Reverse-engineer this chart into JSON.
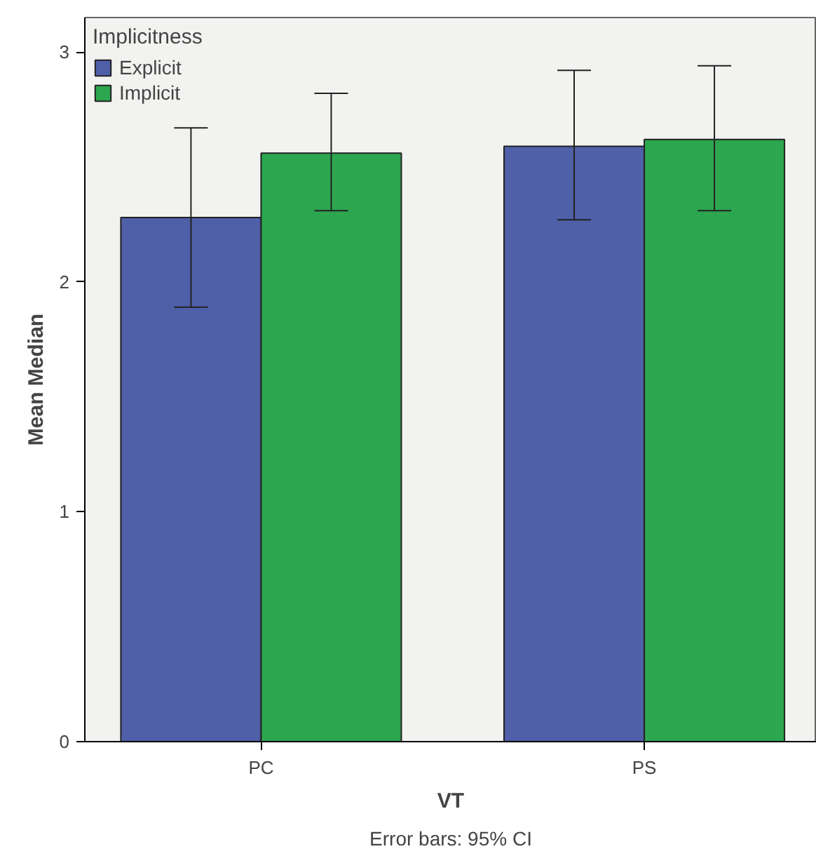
{
  "chart_data": {
    "type": "bar",
    "xlabel": "VT",
    "ylabel": "Mean Median",
    "legend_title": "Implicitness",
    "categories": [
      "PC",
      "PS"
    ],
    "series": [
      {
        "name": "Explicit",
        "color": "#4f5fa8",
        "values": [
          2.28,
          2.59
        ],
        "errors": [
          [
            1.89,
            2.67
          ],
          [
            2.27,
            2.92
          ]
        ]
      },
      {
        "name": "Implicit",
        "color": "#2ca64f",
        "values": [
          2.56,
          2.62
        ],
        "errors": [
          [
            2.31,
            2.82
          ],
          [
            2.31,
            2.94
          ]
        ]
      }
    ],
    "ylim": [
      0,
      3.15
    ],
    "yticks": [
      0,
      1,
      2,
      3
    ],
    "grid": false,
    "legend": "top left",
    "annotations": [
      "Error bars: 95% CI"
    ]
  }
}
